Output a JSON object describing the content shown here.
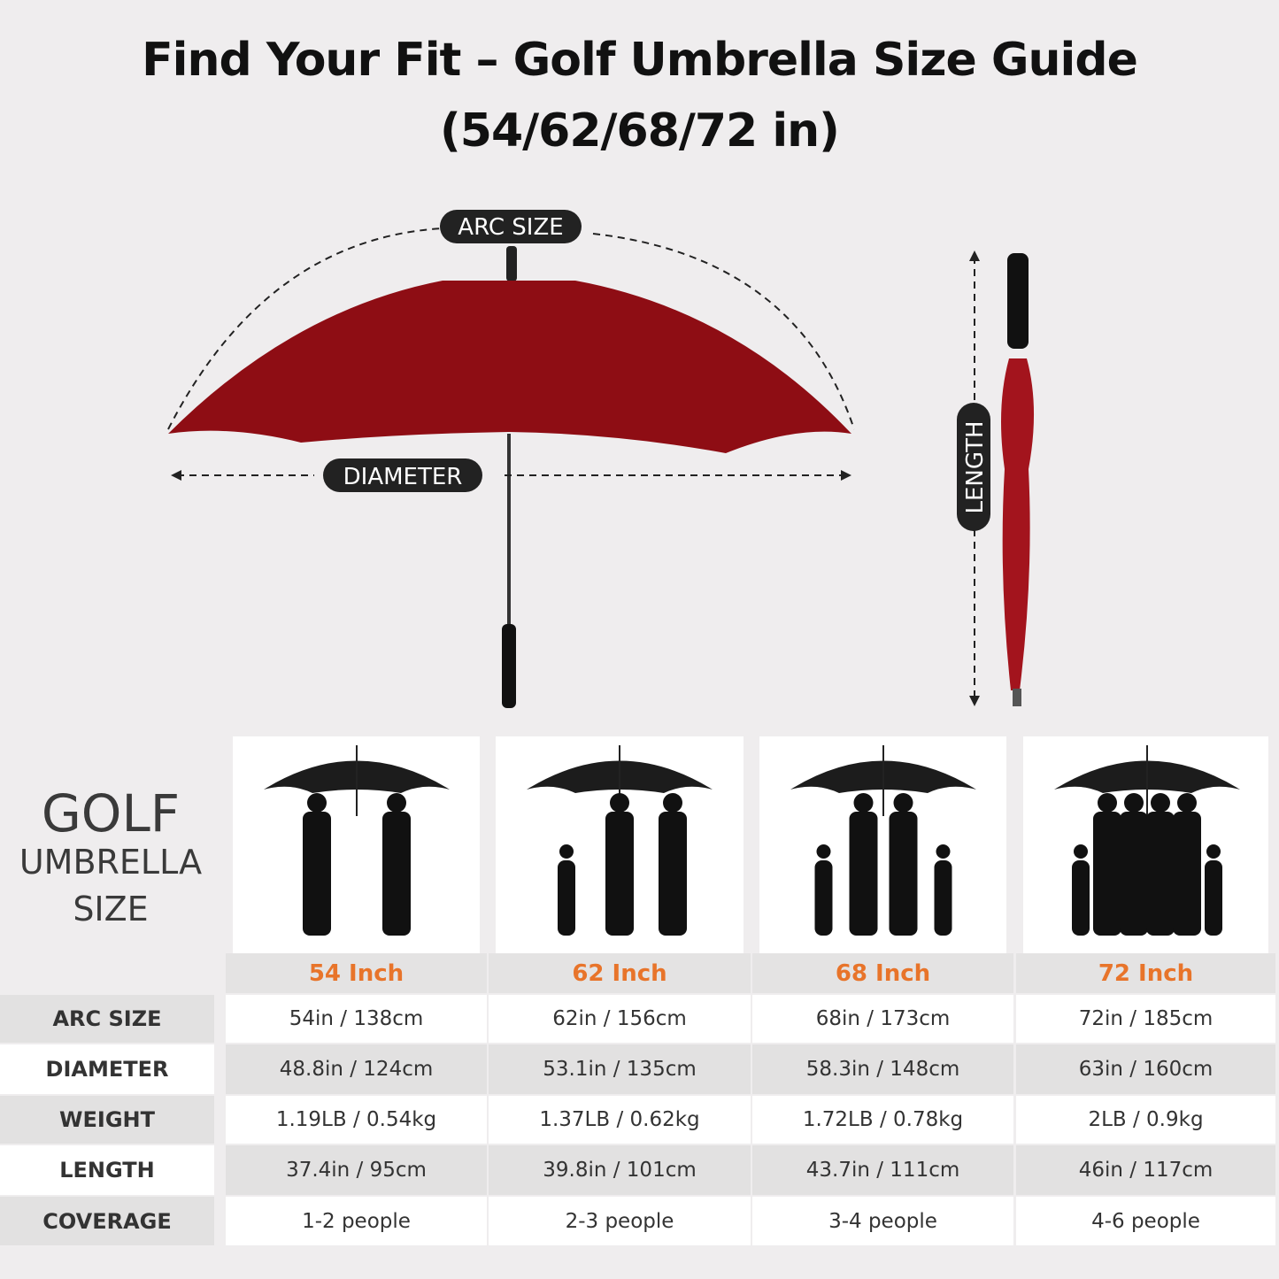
{
  "title_line1": "Find Your Fit – Golf Umbrella Size Guide",
  "title_line2": "(54/62/68/72 in)",
  "diagram": {
    "arc_label": "ARC SIZE",
    "diameter_label": "DIAMETER",
    "length_label": "LENGTH",
    "canopy_color": "#8e0d14"
  },
  "side": {
    "line1": "GOLF",
    "line2": "UMBRELLA",
    "line3": "SIZE"
  },
  "accent": "#e8742a",
  "columns": [
    {
      "size": "54 Inch",
      "people_icons": 2,
      "arc": "54in / 138cm",
      "diameter": "48.8in / 124cm",
      "weight": "1.19LB / 0.54kg",
      "length": "37.4in / 95cm",
      "coverage": "1-2 people"
    },
    {
      "size": "62 Inch",
      "people_icons": 3,
      "arc": "62in / 156cm",
      "diameter": "53.1in / 135cm",
      "weight": "1.37LB / 0.62kg",
      "length": "39.8in / 101cm",
      "coverage": "2-3 people"
    },
    {
      "size": "68 Inch",
      "people_icons": 4,
      "arc": "68in / 173cm",
      "diameter": "58.3in / 148cm",
      "weight": "1.72LB / 0.78kg",
      "length": "43.7in / 111cm",
      "coverage": "3-4 people"
    },
    {
      "size": "72 Inch",
      "people_icons": 6,
      "arc": "72in / 185cm",
      "diameter": "63in / 160cm",
      "weight": "2LB / 0.9kg",
      "length": "46in / 117cm",
      "coverage": "4-6 people"
    }
  ],
  "rows": [
    {
      "key": "arc",
      "label": "ARC SIZE"
    },
    {
      "key": "diameter",
      "label": "DIAMETER"
    },
    {
      "key": "weight",
      "label": "WEIGHT"
    },
    {
      "key": "length",
      "label": "LENGTH"
    },
    {
      "key": "coverage",
      "label": "COVERAGE"
    }
  ]
}
